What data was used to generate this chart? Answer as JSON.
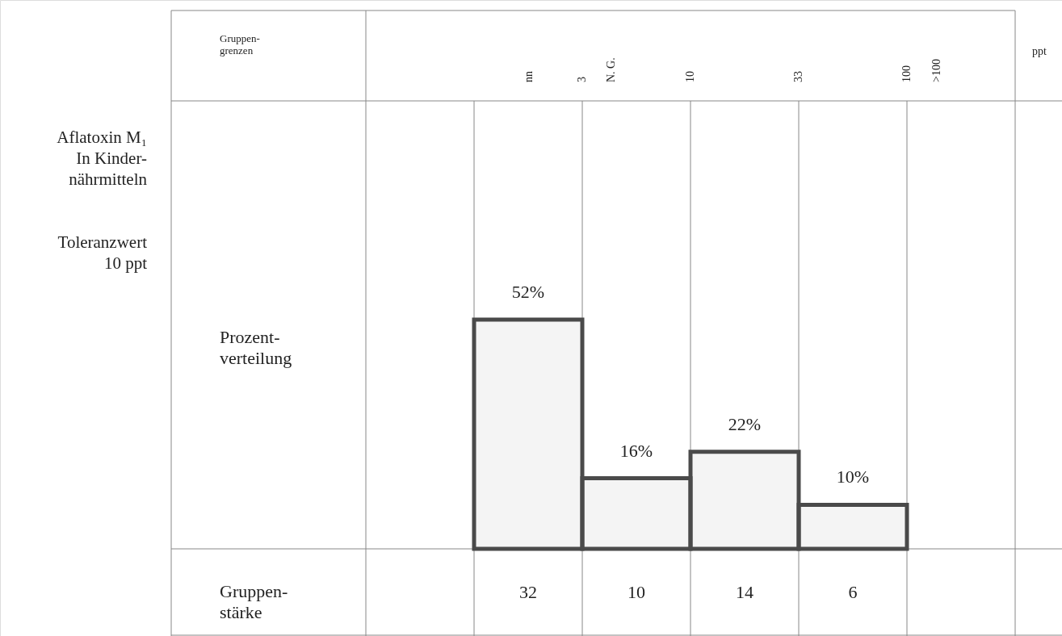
{
  "chart_data": {
    "type": "bar",
    "title": "Aflatoxin M₁\nIn Kinder-\nnährmitteln",
    "subtitle": "Toleranzwert\n10 ppt",
    "categories": [
      null,
      null,
      null,
      null
    ],
    "series": [
      {
        "color": "#4a4a4a",
        "values": [
          52,
          16,
          22,
          10
        ],
        "value_labels": [
          "52%",
          "16%",
          "22%",
          "10%"
        ]
      }
    ],
    "annotations": [
      "Gruppen-\ngrenzen",
      "nn",
      "3",
      "N. G.",
      "10",
      "33",
      "100",
      ">100",
      "ppt",
      "Prozent-\nverteilung",
      "Gruppen-\nstärke",
      "32",
      "10",
      "14",
      "6"
    ]
  }
}
